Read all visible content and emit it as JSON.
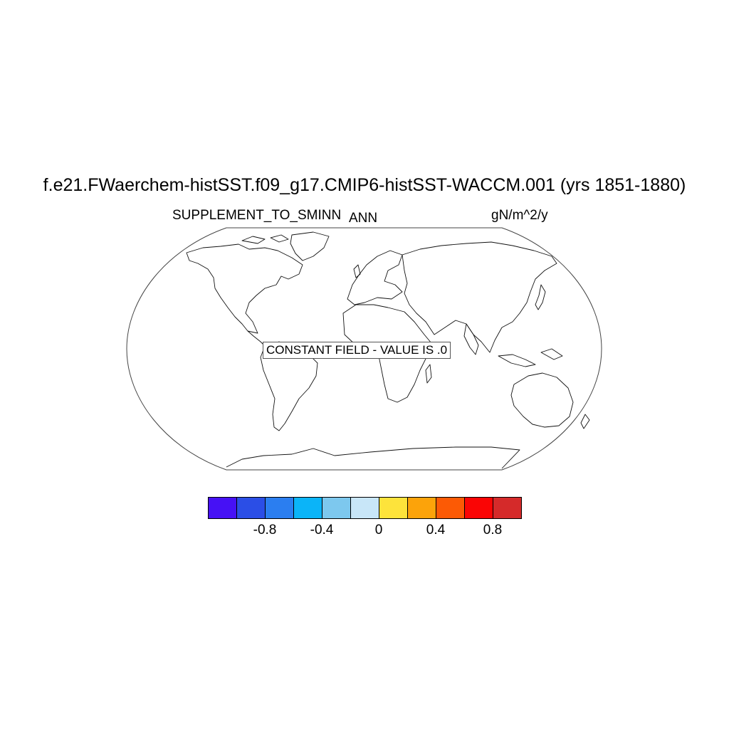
{
  "title": "f.e21.FWaerchem-histSST.f09_g17.CMIP6-histSST-WACCM.001 (yrs 1851-1880)",
  "left_label": "SUPPLEMENT_TO_SMINN",
  "center_label": "ANN",
  "right_label": "gN/m^2/y",
  "constant_field_label": "CONSTANT FIELD - VALUE IS .0",
  "colorbar": {
    "colors": [
      "#4611f5",
      "#2b4ee6",
      "#2b7ef0",
      "#0bb4f8",
      "#7dc8ee",
      "#c8e6f8",
      "#fde33b",
      "#fca30a",
      "#fc5a05",
      "#fa0505",
      "#d52a2a"
    ],
    "tick_labels": [
      "-0.8",
      "-0.4",
      "0",
      "0.4",
      "0.8"
    ],
    "tick_values": [
      -0.8,
      -0.4,
      0,
      0.4,
      0.8
    ]
  }
}
